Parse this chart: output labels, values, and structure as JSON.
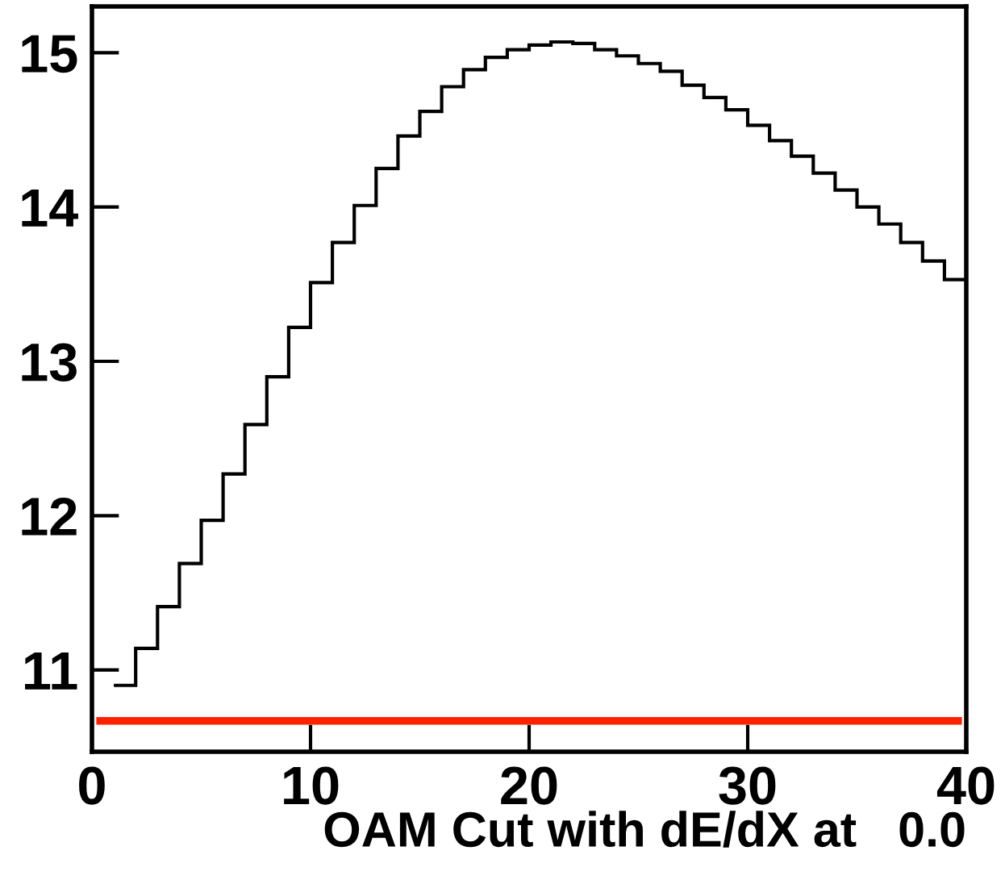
{
  "chart_data": {
    "type": "histogram",
    "xlabel": "OAM Cut with dE/dX at   0.0",
    "bins": [
      1,
      2,
      3,
      4,
      5,
      6,
      7,
      8,
      9,
      10,
      11,
      12,
      13,
      14,
      15,
      16,
      17,
      18,
      19,
      20,
      21,
      22,
      23,
      24,
      25,
      26,
      27,
      28,
      29,
      30,
      31,
      32,
      33,
      34,
      35,
      36,
      37,
      38,
      39,
      40
    ],
    "values": [
      10.9,
      11.14,
      11.41,
      11.69,
      11.97,
      12.27,
      12.59,
      12.9,
      13.22,
      13.51,
      13.77,
      14.01,
      14.25,
      14.46,
      14.62,
      14.78,
      14.89,
      14.97,
      15.02,
      15.05,
      15.07,
      15.06,
      15.02,
      14.98,
      14.93,
      14.88,
      14.79,
      14.71,
      14.63,
      14.53,
      14.43,
      14.33,
      14.22,
      14.11,
      14.0,
      13.89,
      13.77,
      13.65,
      13.53
    ],
    "color": "#000000",
    "xlim": [
      0,
      40
    ],
    "ylim": [
      10.47,
      15.3
    ],
    "xticks": [
      0,
      10,
      20,
      30,
      40
    ],
    "yticks": [
      11,
      12,
      13,
      14,
      15
    ],
    "ref_lines": [
      {
        "axis": "y",
        "value": 10.67,
        "color": "#ff2200"
      }
    ],
    "grid": false,
    "legend": false
  }
}
